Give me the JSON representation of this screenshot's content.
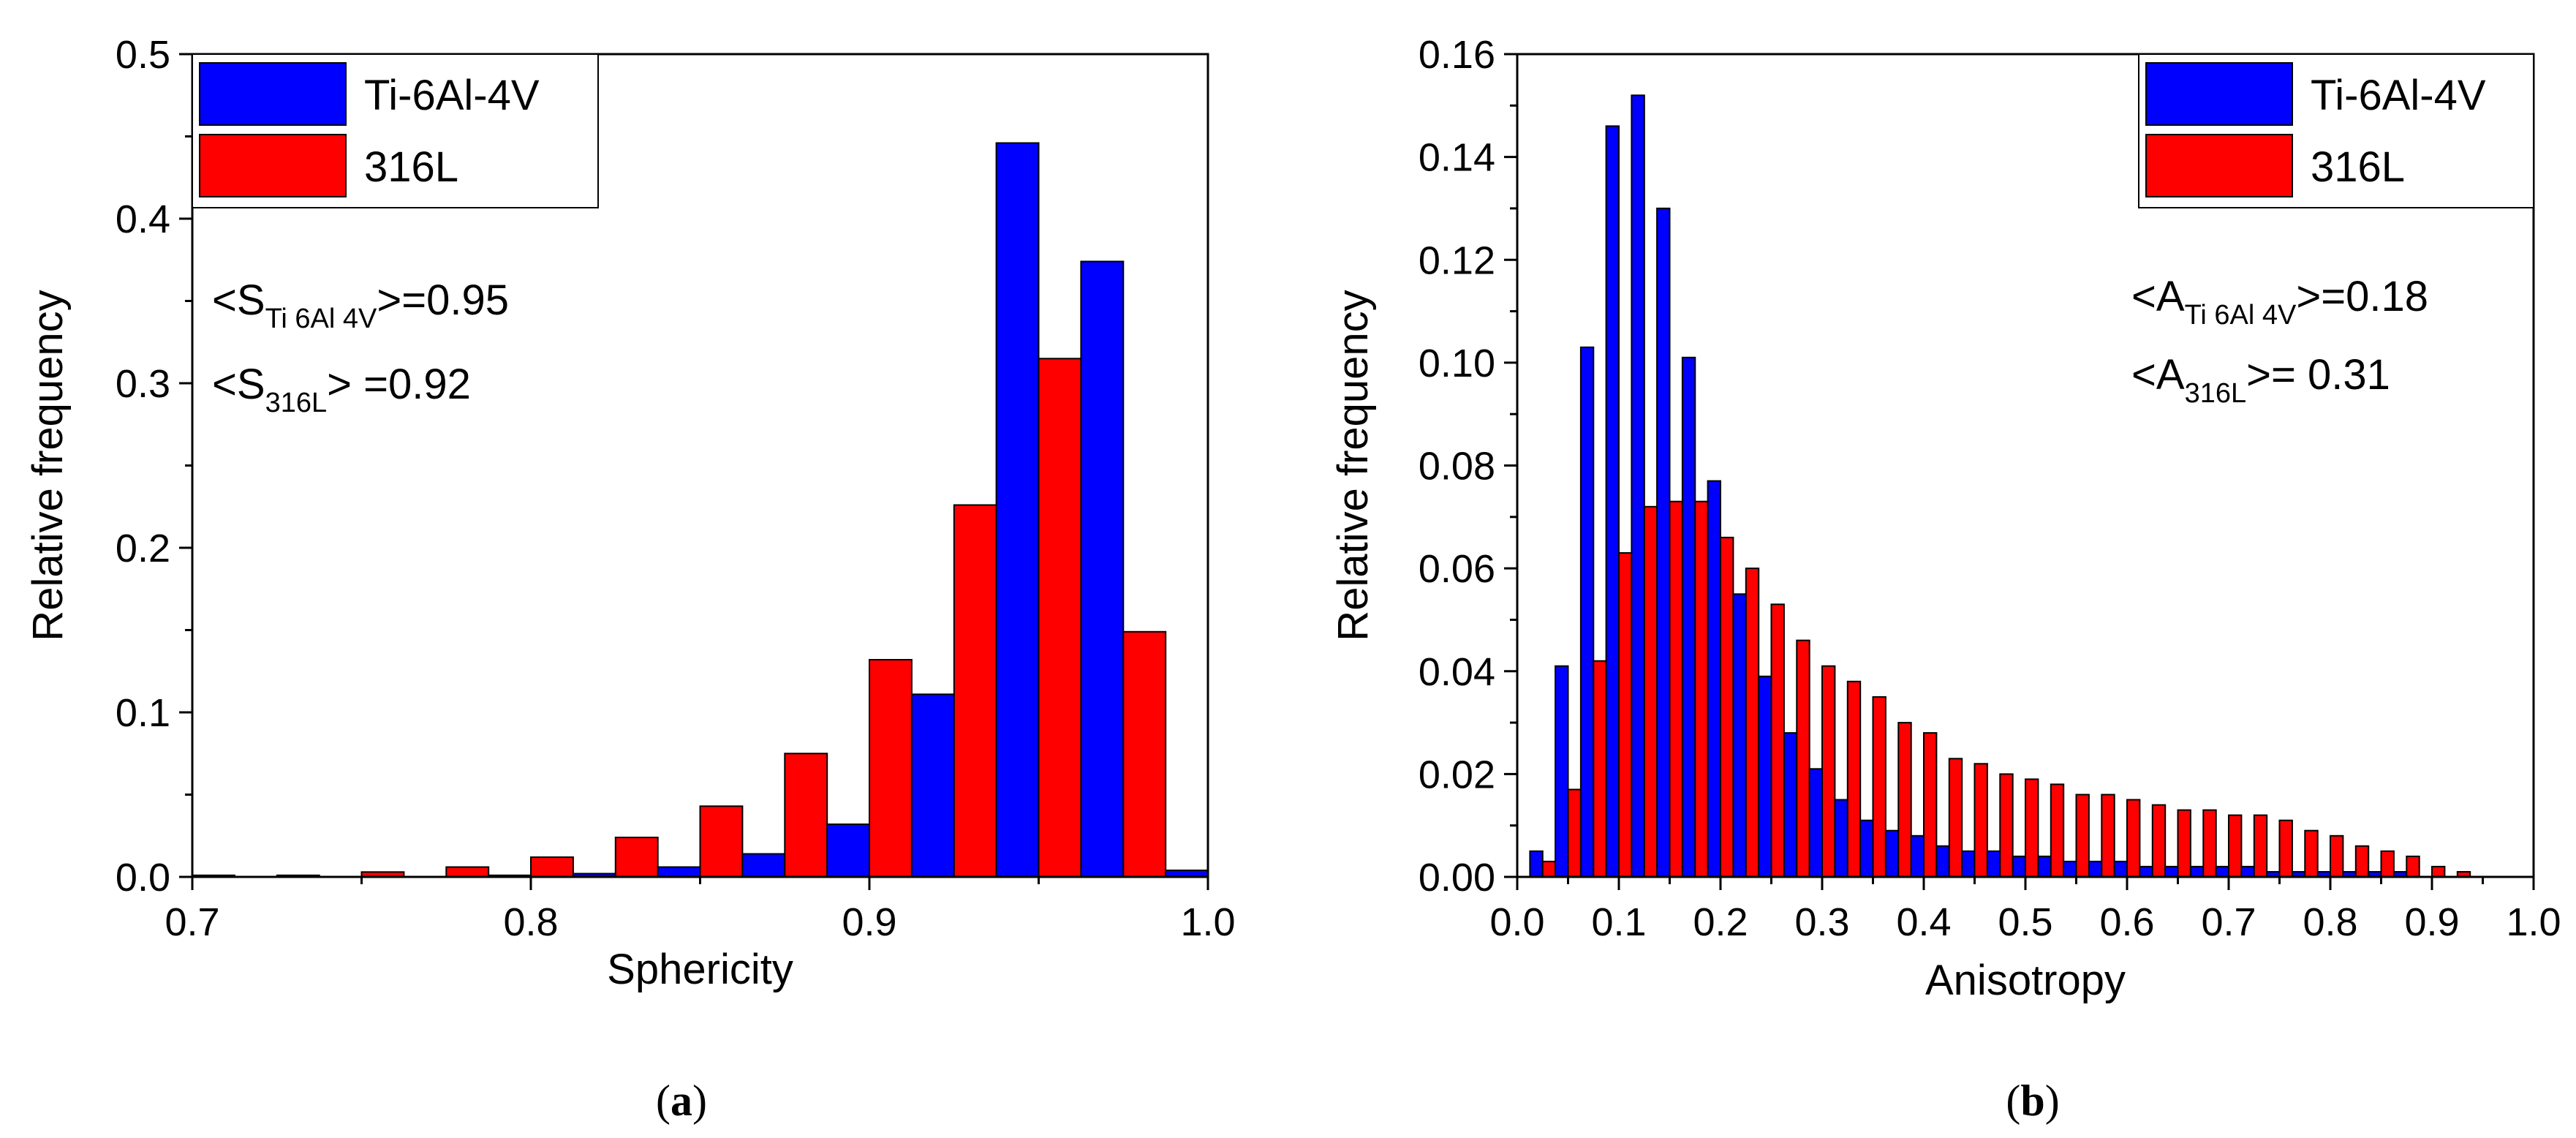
{
  "chart_data": [
    {
      "type": "bar",
      "panel_label": "a",
      "xlabel": "Sphericity",
      "ylabel": "Relative frequency",
      "xlim": [
        0.7,
        1.0
      ],
      "ylim": [
        0.0,
        0.5
      ],
      "xticks": [
        "0.7",
        "0.8",
        "0.9",
        "1.0"
      ],
      "yticks": [
        "0.0",
        "0.1",
        "0.2",
        "0.3",
        "0.4",
        "0.5"
      ],
      "legend": {
        "position": "top-left",
        "entries": [
          {
            "label": "Ti-6Al-4V",
            "color": "#0000ff"
          },
          {
            "label": "316L",
            "color": "#ff0000"
          }
        ]
      },
      "bin_width": 0.025,
      "x": [
        0.7,
        0.725,
        0.75,
        0.775,
        0.8,
        0.825,
        0.85,
        0.875,
        0.9,
        0.925,
        0.95,
        0.975,
        1.0
      ],
      "series": [
        {
          "name": "Ti-6Al-4V",
          "color": "#0000ff",
          "values": [
            0.0,
            0.0,
            0.0,
            0.0,
            0.001,
            0.002,
            0.006,
            0.014,
            0.032,
            0.111,
            0.446,
            0.374,
            0.004
          ]
        },
        {
          "name": "316L",
          "color": "#ff0000",
          "values": [
            0.001,
            0.001,
            0.003,
            0.006,
            0.012,
            0.024,
            0.043,
            0.075,
            0.132,
            0.226,
            0.315,
            0.149,
            0.0
          ]
        }
      ],
      "annotations": [
        {
          "prefix": "<S",
          "subscript": "Ti 6Al 4V",
          "suffix": ">=0.95"
        },
        {
          "prefix": "<S",
          "subscript": "316L",
          "suffix": "> =0.92"
        }
      ]
    },
    {
      "type": "bar",
      "panel_label": "b",
      "xlabel": "Anisotropy",
      "ylabel": "Relative frequency",
      "xlim": [
        0.0,
        1.0
      ],
      "ylim": [
        0.0,
        0.16
      ],
      "xticks": [
        "0.0",
        "0.1",
        "0.2",
        "0.3",
        "0.4",
        "0.5",
        "0.6",
        "0.7",
        "0.8",
        "0.9",
        "1.0"
      ],
      "yticks": [
        "0.00",
        "0.02",
        "0.04",
        "0.06",
        "0.08",
        "0.10",
        "0.12",
        "0.14",
        "0.16"
      ],
      "legend": {
        "position": "top-right",
        "entries": [
          {
            "label": "Ti-6Al-4V",
            "color": "#0000ff"
          },
          {
            "label": "316L",
            "color": "#ff0000"
          }
        ]
      },
      "bin_width": 0.025,
      "x": [
        0.025,
        0.05,
        0.075,
        0.1,
        0.125,
        0.15,
        0.175,
        0.2,
        0.225,
        0.25,
        0.275,
        0.3,
        0.325,
        0.35,
        0.375,
        0.4,
        0.425,
        0.45,
        0.475,
        0.5,
        0.525,
        0.55,
        0.575,
        0.6,
        0.625,
        0.65,
        0.675,
        0.7,
        0.725,
        0.75,
        0.775,
        0.8,
        0.825,
        0.85,
        0.875,
        0.9,
        0.925,
        0.95
      ],
      "series": [
        {
          "name": "Ti-6Al-4V",
          "color": "#0000ff",
          "values": [
            0.005,
            0.041,
            0.103,
            0.146,
            0.152,
            0.13,
            0.101,
            0.077,
            0.055,
            0.039,
            0.028,
            0.021,
            0.015,
            0.011,
            0.009,
            0.008,
            0.006,
            0.005,
            0.005,
            0.004,
            0.004,
            0.003,
            0.003,
            0.003,
            0.002,
            0.002,
            0.002,
            0.002,
            0.002,
            0.001,
            0.001,
            0.001,
            0.001,
            0.001,
            0.001,
            0.0,
            0.0,
            0.0
          ]
        },
        {
          "name": "316L",
          "color": "#ff0000",
          "values": [
            0.003,
            0.017,
            0.042,
            0.063,
            0.072,
            0.073,
            0.073,
            0.066,
            0.06,
            0.053,
            0.046,
            0.041,
            0.038,
            0.035,
            0.03,
            0.028,
            0.023,
            0.022,
            0.02,
            0.019,
            0.018,
            0.016,
            0.016,
            0.015,
            0.014,
            0.013,
            0.013,
            0.012,
            0.012,
            0.011,
            0.009,
            0.008,
            0.006,
            0.005,
            0.004,
            0.002,
            0.001,
            0.0
          ]
        }
      ],
      "annotations": [
        {
          "prefix": "<A",
          "subscript": "Ti 6Al 4V",
          "suffix": ">=0.18"
        },
        {
          "prefix": "<A",
          "subscript": "316L",
          "suffix": ">= 0.31"
        }
      ]
    }
  ]
}
